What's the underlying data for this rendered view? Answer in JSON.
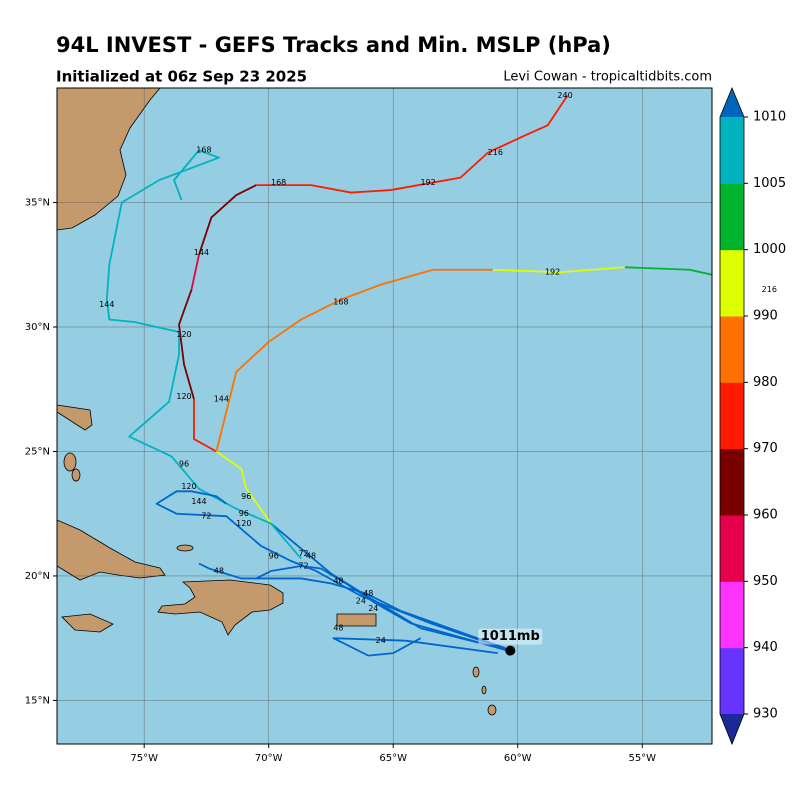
{
  "title": "94L INVEST - GEFS Tracks and Min. MSLP (hPa)",
  "subtitle": "Initialized at 06z Sep 23 2025",
  "credit": "Levi Cowan - tropicaltidbits.com",
  "map": {
    "lonlim": [
      -78.5,
      -52.2
    ],
    "latlim": [
      13.25,
      39.6
    ],
    "lonticks": [
      {
        "value": -75,
        "label": "75°W"
      },
      {
        "value": -70,
        "label": "70°W"
      },
      {
        "value": -65,
        "label": "65°W"
      },
      {
        "value": -60,
        "label": "60°W"
      },
      {
        "value": -55,
        "label": "55°W"
      }
    ],
    "latticks": [
      {
        "value": 35,
        "label": "35°N"
      },
      {
        "value": 30,
        "label": "30°N"
      },
      {
        "value": 25,
        "label": "25°N"
      },
      {
        "value": 20,
        "label": "20°N"
      },
      {
        "value": 15,
        "label": "15°N"
      }
    ],
    "storm": {
      "lon": -60.3,
      "lat": 17.0,
      "label": "1011mb"
    },
    "tracks": [
      {
        "color": "#0066cc",
        "points": [
          [
            -60.3,
            17.0
          ],
          [
            -63.9,
            17.9
          ],
          [
            -65.9,
            19.1
          ],
          [
            -67.5,
            20.1
          ],
          [
            -68.7,
            21.1
          ],
          [
            -69.9,
            22.1
          ]
        ]
      },
      {
        "color": "#ddff00",
        "points": [
          [
            -69.9,
            22.1
          ],
          [
            -70.9,
            23.5
          ],
          [
            -71.1,
            24.3
          ],
          [
            -72.1,
            25.0
          ]
        ]
      },
      {
        "color": "#ff1a00",
        "points": [
          [
            -72.1,
            25.0
          ],
          [
            -73.0,
            25.5
          ],
          [
            -73.0,
            27.1
          ]
        ]
      },
      {
        "color": "#7a0000",
        "points": [
          [
            -73.0,
            27.1
          ],
          [
            -73.4,
            28.5
          ],
          [
            -73.6,
            30.1
          ],
          [
            -73.1,
            31.5
          ]
        ]
      },
      {
        "color": "#e6004c",
        "points": [
          [
            -73.1,
            31.5
          ],
          [
            -72.8,
            32.9
          ]
        ]
      },
      {
        "color": "#7a0000",
        "points": [
          [
            -72.8,
            32.9
          ],
          [
            -72.3,
            34.4
          ],
          [
            -71.3,
            35.3
          ],
          [
            -70.5,
            35.7
          ]
        ]
      },
      {
        "color": "#ff1a00",
        "points": [
          [
            -70.5,
            35.7
          ],
          [
            -68.3,
            35.7
          ],
          [
            -66.7,
            35.4
          ],
          [
            -65.1,
            35.5
          ],
          [
            -62.3,
            36.0
          ],
          [
            -61.2,
            37.0
          ],
          [
            -59.7,
            37.7
          ],
          [
            -58.8,
            38.1
          ],
          [
            -58.0,
            39.3
          ]
        ]
      },
      {
        "color": "#ff7000",
        "points": [
          [
            -72.1,
            25.0
          ],
          [
            -71.3,
            28.2
          ],
          [
            -70.0,
            29.4
          ],
          [
            -68.7,
            30.3
          ],
          [
            -67.1,
            31.1
          ],
          [
            -65.5,
            31.7
          ],
          [
            -63.4,
            32.3
          ],
          [
            -61.0,
            32.3
          ]
        ]
      },
      {
        "color": "#ddff00",
        "points": [
          [
            -61.0,
            32.3
          ],
          [
            -58.3,
            32.2
          ],
          [
            -55.7,
            32.4
          ]
        ]
      },
      {
        "color": "#00b32d",
        "points": [
          [
            -55.7,
            32.4
          ],
          [
            -53.1,
            32.3
          ],
          [
            -52.2,
            32.1
          ]
        ]
      },
      {
        "color": "#00b3bf",
        "points": [
          [
            -68.7,
            20.7
          ],
          [
            -69.9,
            22.1
          ],
          [
            -71.3,
            22.7
          ],
          [
            -72.8,
            23.5
          ],
          [
            -73.9,
            24.8
          ],
          [
            -75.6,
            25.6
          ],
          [
            -74.0,
            27.0
          ],
          [
            -73.6,
            28.9
          ],
          [
            -73.6,
            29.8
          ],
          [
            -75.4,
            30.2
          ],
          [
            -76.4,
            30.3
          ],
          [
            -76.5,
            31.1
          ],
          [
            -76.4,
            32.5
          ],
          [
            -75.9,
            35.0
          ],
          [
            -74.4,
            35.9
          ],
          [
            -72.0,
            36.8
          ],
          [
            -72.8,
            37.1
          ],
          [
            -73.8,
            35.9
          ],
          [
            -73.5,
            35.1
          ]
        ]
      },
      {
        "color": "#0066cc",
        "points": [
          [
            -60.3,
            17.0
          ],
          [
            -63.5,
            18.1
          ],
          [
            -66.3,
            19.2
          ],
          [
            -68.1,
            20.2
          ],
          [
            -69.1,
            20.6
          ],
          [
            -70.3,
            21.2
          ],
          [
            -71.7,
            22.4
          ],
          [
            -73.7,
            22.5
          ],
          [
            -74.5,
            22.9
          ],
          [
            -73.7,
            23.4
          ],
          [
            -73.1,
            23.4
          ],
          [
            -72.1,
            23.2
          ],
          [
            -71.7,
            22.9
          ]
        ]
      },
      {
        "color": "#0066cc",
        "points": [
          [
            -60.8,
            16.9
          ],
          [
            -64.5,
            17.4
          ],
          [
            -67.4,
            17.5
          ],
          [
            -66.0,
            16.8
          ],
          [
            -65.0,
            16.9
          ],
          [
            -63.9,
            17.5
          ]
        ]
      },
      {
        "color": "#0066cc",
        "points": [
          [
            -60.5,
            17.1
          ],
          [
            -64.7,
            18.6
          ],
          [
            -66.1,
            19.3
          ],
          [
            -67.5,
            19.7
          ],
          [
            -68.7,
            19.9
          ],
          [
            -71.1,
            19.9
          ],
          [
            -72.4,
            20.3
          ],
          [
            -72.8,
            20.5
          ]
        ]
      },
      {
        "color": "#0066cc",
        "points": [
          [
            -60.4,
            17.0
          ],
          [
            -64.3,
            18.1
          ],
          [
            -65.7,
            18.9
          ],
          [
            -66.9,
            19.7
          ],
          [
            -67.9,
            20.3
          ],
          [
            -68.7,
            20.4
          ],
          [
            -69.9,
            20.2
          ],
          [
            -70.5,
            19.9
          ]
        ]
      }
    ],
    "hour_labels": [
      {
        "text": "240",
        "lon": -58.1,
        "lat": 39.3
      },
      {
        "text": "216",
        "lon": -60.9,
        "lat": 37.0
      },
      {
        "text": "192",
        "lon": -63.6,
        "lat": 35.8
      },
      {
        "text": "168",
        "lon": -69.6,
        "lat": 35.8
      },
      {
        "text": "168",
        "lon": -72.6,
        "lat": 37.1
      },
      {
        "text": "144",
        "lon": -72.7,
        "lat": 33.0
      },
      {
        "text": "144",
        "lon": -76.5,
        "lat": 30.9
      },
      {
        "text": "120",
        "lon": -73.4,
        "lat": 29.7
      },
      {
        "text": "120",
        "lon": -73.4,
        "lat": 27.2
      },
      {
        "text": "144",
        "lon": -71.9,
        "lat": 27.1
      },
      {
        "text": "168",
        "lon": -67.1,
        "lat": 31.0
      },
      {
        "text": "192",
        "lon": -58.6,
        "lat": 32.2
      },
      {
        "text": "216",
        "lon": -49.9,
        "lat": 31.5
      },
      {
        "text": "96",
        "lon": -73.4,
        "lat": 24.5
      },
      {
        "text": "120",
        "lon": -73.2,
        "lat": 23.6
      },
      {
        "text": "144",
        "lon": -72.8,
        "lat": 23.0
      },
      {
        "text": "96",
        "lon": -70.9,
        "lat": 23.2
      },
      {
        "text": "72",
        "lon": -72.5,
        "lat": 22.4
      },
      {
        "text": "96",
        "lon": -71.0,
        "lat": 22.5
      },
      {
        "text": "120",
        "lon": -71.0,
        "lat": 22.1
      },
      {
        "text": "96",
        "lon": -69.8,
        "lat": 20.8
      },
      {
        "text": "72",
        "lon": -68.6,
        "lat": 20.9
      },
      {
        "text": "48",
        "lon": -68.3,
        "lat": 20.8
      },
      {
        "text": "72",
        "lon": -68.6,
        "lat": 20.4
      },
      {
        "text": "48",
        "lon": -72.0,
        "lat": 20.2
      },
      {
        "text": "48",
        "lon": -67.2,
        "lat": 19.8
      },
      {
        "text": "48",
        "lon": -66.0,
        "lat": 19.3
      },
      {
        "text": "24",
        "lon": -66.3,
        "lat": 19.0
      },
      {
        "text": "24",
        "lon": -65.8,
        "lat": 18.7
      },
      {
        "text": "48",
        "lon": -67.2,
        "lat": 17.9
      },
      {
        "text": "24",
        "lon": -65.5,
        "lat": 17.4
      }
    ]
  },
  "colorbar": {
    "ticks": [
      930,
      940,
      950,
      960,
      970,
      980,
      990,
      1000,
      1005,
      1010
    ],
    "colors": [
      "#6633ff",
      "#ff33ff",
      "#e6004c",
      "#7a0000",
      "#ff1a00",
      "#ff7000",
      "#ddff00",
      "#00b32d",
      "#00b3bf"
    ],
    "under": "#1a2a99",
    "over": "#0066bb"
  }
}
